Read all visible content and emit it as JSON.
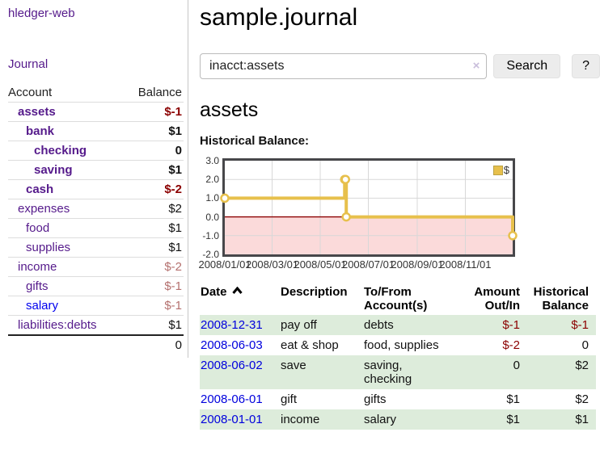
{
  "sidebar": {
    "brand": "hledger-web",
    "nav": [
      {
        "label": "Journal"
      }
    ],
    "accounts_table": {
      "headers": {
        "account": "Account",
        "balance": "Balance"
      },
      "rows": [
        {
          "account": "assets",
          "balance": "$-1",
          "level": 1,
          "bold": true,
          "balance_style": "negative-strong"
        },
        {
          "account": "bank",
          "balance": "$1",
          "level": 2,
          "bold": true,
          "balance_style": "normal"
        },
        {
          "account": "checking",
          "balance": "0",
          "level": 3,
          "bold": true,
          "balance_style": "normal"
        },
        {
          "account": "saving",
          "balance": "$1",
          "level": 3,
          "bold": true,
          "balance_style": "normal"
        },
        {
          "account": "cash",
          "balance": "$-2",
          "level": 2,
          "bold": true,
          "balance_style": "negative-strong"
        },
        {
          "account": "expenses",
          "balance": "$2",
          "level": 1,
          "bold": false,
          "balance_style": "normal"
        },
        {
          "account": "food",
          "balance": "$1",
          "level": 2,
          "bold": false,
          "balance_style": "normal"
        },
        {
          "account": "supplies",
          "balance": "$1",
          "level": 2,
          "bold": false,
          "balance_style": "normal"
        },
        {
          "account": "income",
          "balance": "$-2",
          "level": 1,
          "bold": false,
          "balance_style": "negative-soft"
        },
        {
          "account": "gifts",
          "balance": "$-1",
          "level": 2,
          "bold": false,
          "balance_style": "negative-soft"
        },
        {
          "account": "salary",
          "balance": "$-1",
          "level": 2,
          "bold": false,
          "balance_style": "negative-soft",
          "link_color": "blue"
        },
        {
          "account": "liabilities:debts",
          "balance": "$1",
          "level": 1,
          "bold": false,
          "balance_style": "normal"
        }
      ],
      "total": "0"
    }
  },
  "main": {
    "title": "sample.journal",
    "search": {
      "value": "inacct:assets",
      "clear_icon": "×",
      "button": "Search",
      "help_button": "?"
    },
    "section_title": "assets",
    "chart_label": "Historical Balance:",
    "register_table": {
      "headers": [
        {
          "lines": [
            "Date"
          ],
          "sorted": "asc"
        },
        {
          "lines": [
            "Description"
          ]
        },
        {
          "lines": [
            "To/From",
            "Account(s)"
          ]
        },
        {
          "lines": [
            "Amount",
            "Out/In"
          ],
          "align": "right"
        },
        {
          "lines": [
            "Historical",
            "Balance"
          ],
          "align": "right"
        }
      ],
      "rows": [
        {
          "date": "2008-12-31",
          "description": "pay off",
          "accounts_lines": [
            "debts"
          ],
          "amount": "$-1",
          "amount_negative": true,
          "balance": "$-1",
          "balance_negative": true
        },
        {
          "date": "2008-06-03",
          "description": "eat & shop",
          "accounts_lines": [
            "food, supplies"
          ],
          "amount": "$-2",
          "amount_negative": true,
          "balance": "0",
          "balance_negative": false
        },
        {
          "date": "2008-06-02",
          "description": "save",
          "accounts_lines": [
            "saving,",
            "checking"
          ],
          "amount": "0",
          "amount_negative": false,
          "balance": "$2",
          "balance_negative": false
        },
        {
          "date": "2008-06-01",
          "description": "gift",
          "accounts_lines": [
            "gifts"
          ],
          "amount": "$1",
          "amount_negative": false,
          "balance": "$2",
          "balance_negative": false
        },
        {
          "date": "2008-01-01",
          "description": "income",
          "accounts_lines": [
            "salary"
          ],
          "amount": "$1",
          "amount_negative": false,
          "balance": "$1",
          "balance_negative": false
        }
      ]
    }
  },
  "chart_data": {
    "type": "line",
    "title": "Historical Balance",
    "step": true,
    "legend": "$",
    "legend_position": "top-right",
    "grid": true,
    "ylim": [
      -2,
      3
    ],
    "x_range": [
      "2008-01-01",
      "2008-12-31"
    ],
    "y_ticks": [
      "3.0",
      "2.0",
      "1.0",
      "0.0",
      "-1.0",
      "-2.0"
    ],
    "x_ticks": [
      {
        "label": "2008/01/01",
        "date": "2008-01-01"
      },
      {
        "label": "2008/03/01",
        "date": "2008-03-01"
      },
      {
        "label": "2008/05/01",
        "date": "2008-05-01"
      },
      {
        "label": "2008/07/01",
        "date": "2008-07-01"
      },
      {
        "label": "2008/09/01",
        "date": "2008-09-01"
      },
      {
        "label": "2008/11/01",
        "date": "2008-11-01"
      }
    ],
    "series": [
      {
        "name": "$",
        "points": [
          [
            "2008-01-01",
            1
          ],
          [
            "2008-06-01",
            2
          ],
          [
            "2008-06-02",
            2
          ],
          [
            "2008-06-03",
            0
          ],
          [
            "2008-12-31",
            -1
          ]
        ]
      }
    ],
    "colors": {
      "line": "#e7c04c",
      "marker_fill": "#ffffff",
      "negative_area": "#fbdada",
      "zero_line": "#8b0000",
      "grid": "#d8d8d8",
      "border": "#47474a"
    }
  }
}
